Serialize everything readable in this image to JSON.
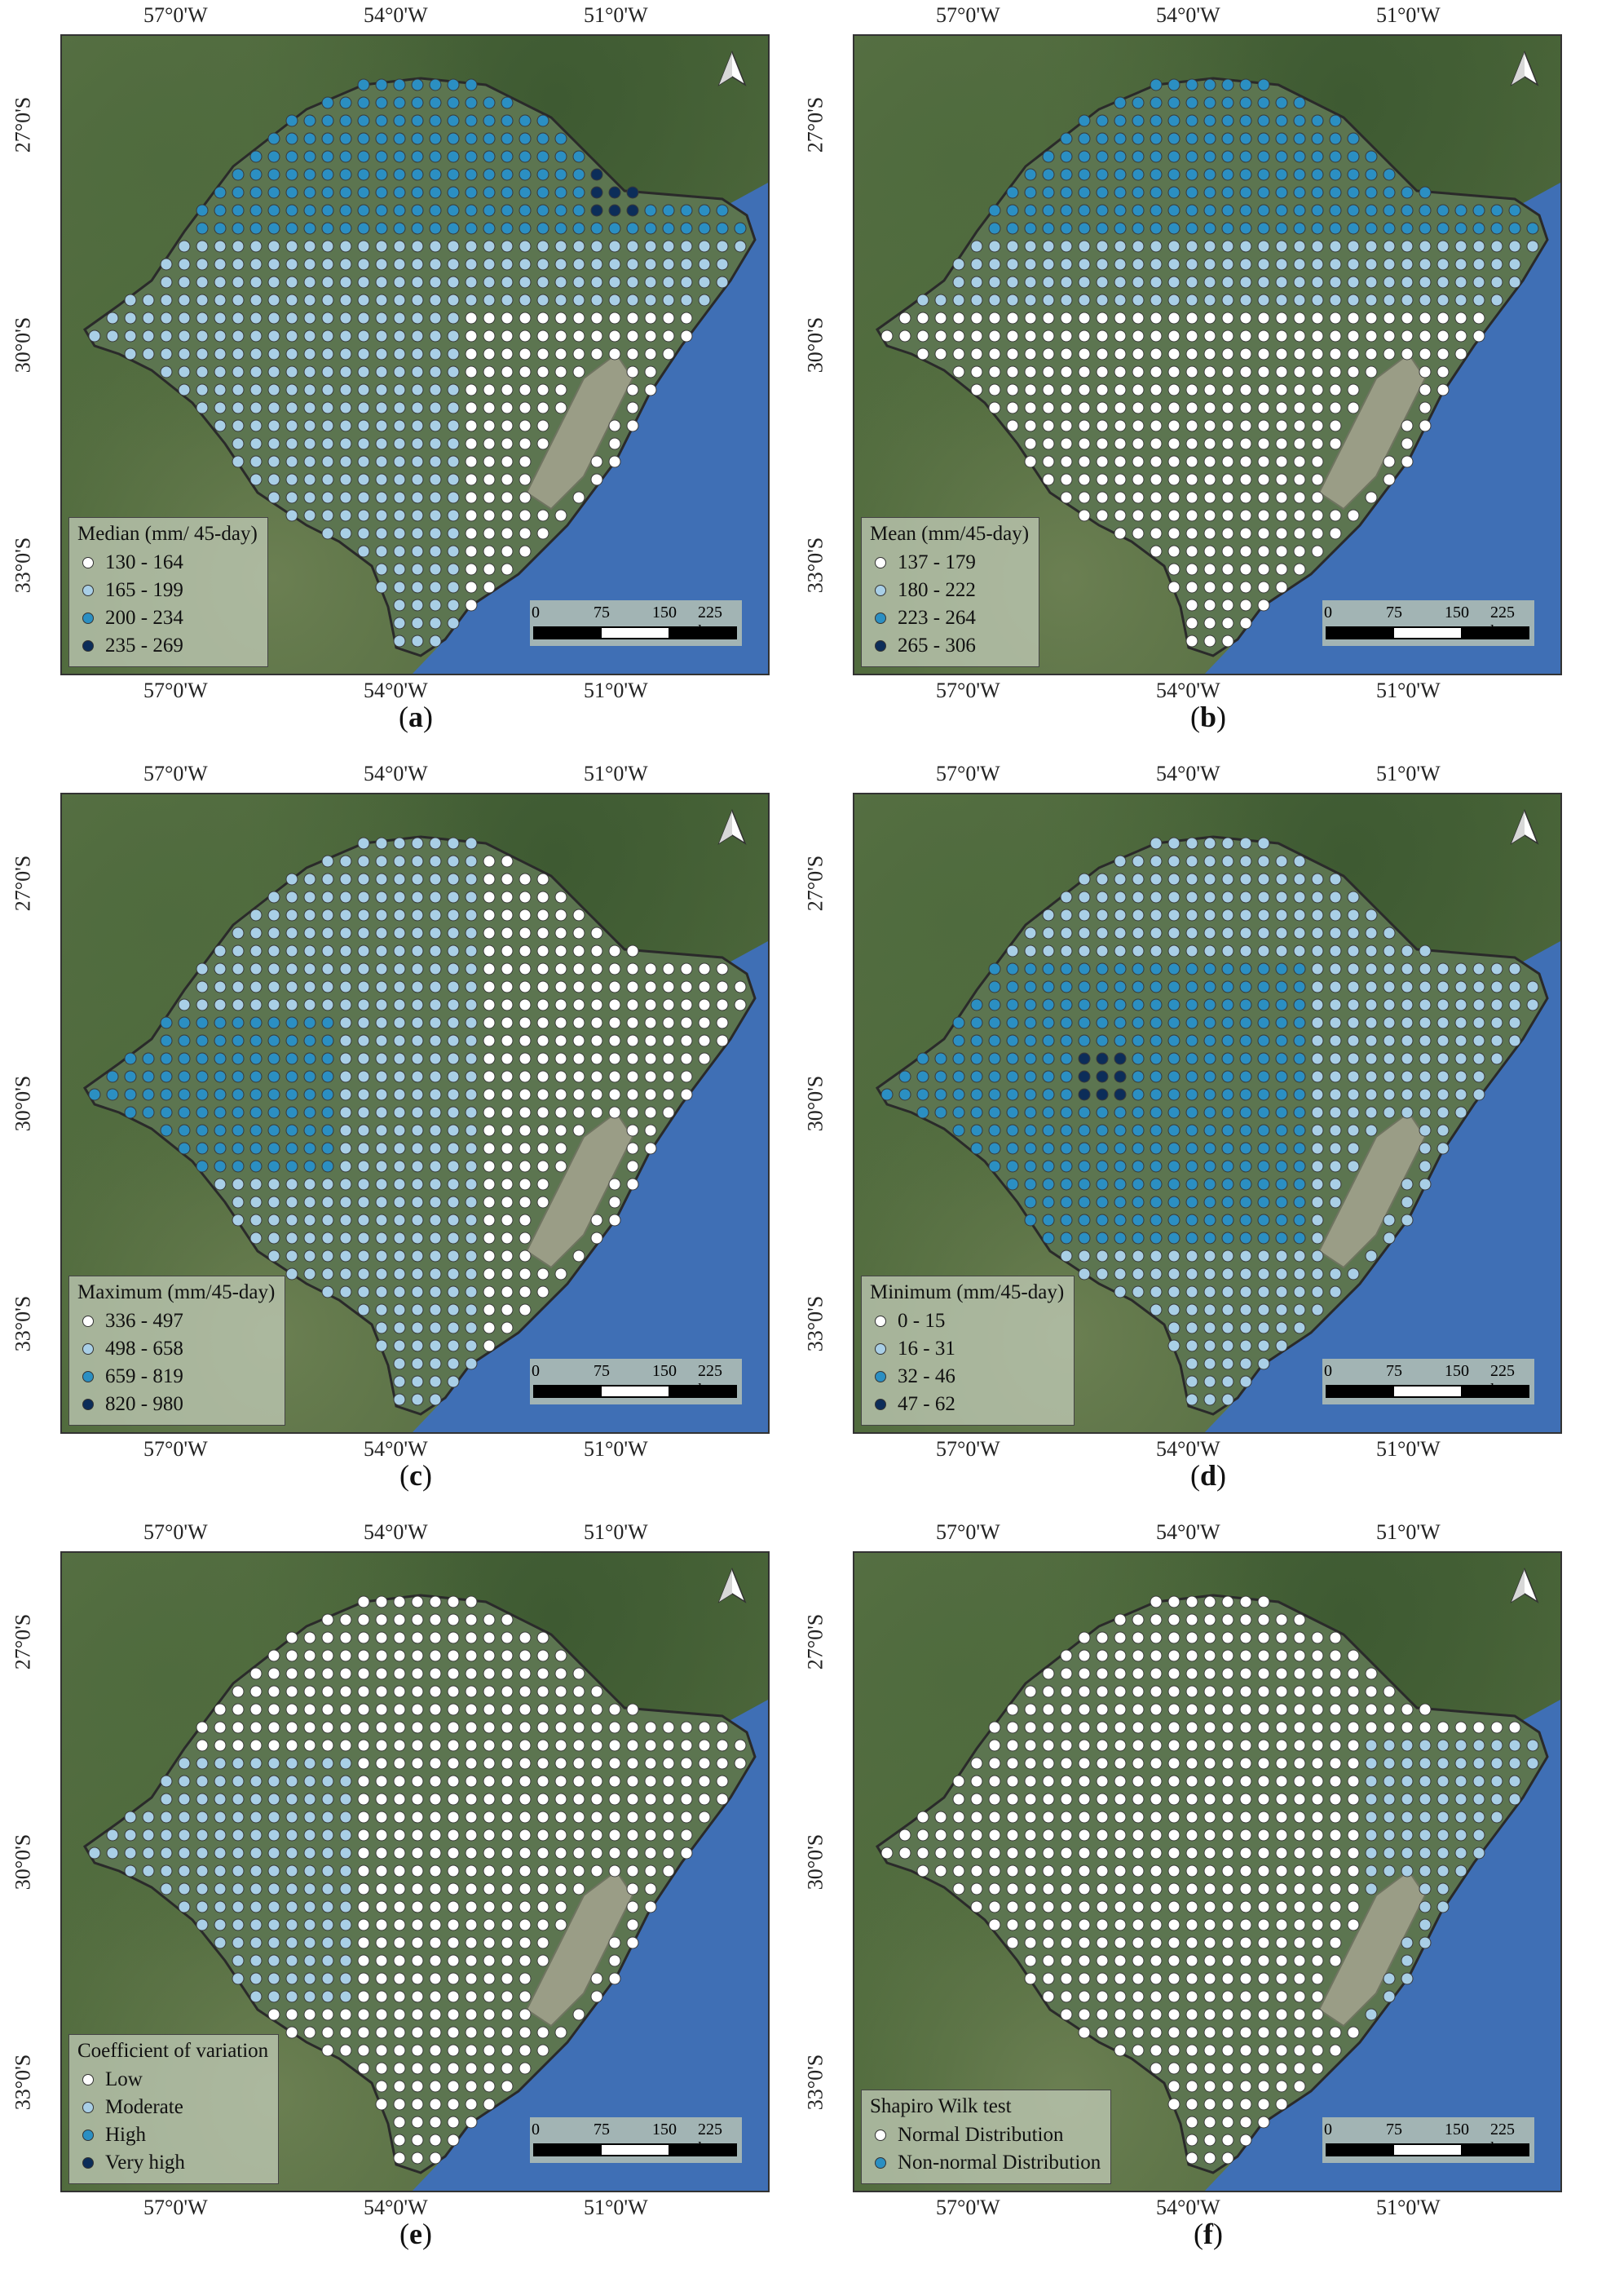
{
  "coordinates": {
    "lon_labels": [
      "57°0'W",
      "54°0'W",
      "51°0'W"
    ],
    "lat_labels": [
      "27°0'S",
      "30°0'S",
      "33°0'S"
    ]
  },
  "scale_bar": {
    "labels": [
      "0",
      "75",
      "150",
      "225 km"
    ]
  },
  "colors": {
    "class1": "#ffffff",
    "class2": "#a9cfe6",
    "class3": "#2b8fc2",
    "class4": "#0c2d59",
    "land": "#4d6a3c",
    "ocean": "#3f6fb5",
    "lagoon": "#9a9d86",
    "state_area": "#5c7550"
  },
  "panels": [
    {
      "caption_letter": "a",
      "legend_title": "Median (mm/ 45-day)",
      "classes": [
        "130 - 164",
        "165 - 199",
        "200 - 234",
        "235 - 269"
      ]
    },
    {
      "caption_letter": "b",
      "legend_title": "Mean (mm/45-day)",
      "classes": [
        "137 - 179",
        "180 - 222",
        "223 - 264",
        "265 - 306"
      ]
    },
    {
      "caption_letter": "c",
      "legend_title": "Maximum (mm/45-day)",
      "classes": [
        "336 - 497",
        "498 - 658",
        "659 - 819",
        "820 - 980"
      ]
    },
    {
      "caption_letter": "d",
      "legend_title": "Minimum (mm/45-day)",
      "classes": [
        "0 - 15",
        "16 - 31",
        "32 - 46",
        "47 - 62"
      ]
    },
    {
      "caption_letter": "e",
      "legend_title": "Coefficient of variation",
      "classes": [
        "Low",
        "Moderate",
        "High",
        "Very high"
      ]
    },
    {
      "caption_letter": "f",
      "legend_title": "Shapiro Wilk test",
      "classes": [
        "Normal Distribution",
        "Non-normal Distribution"
      ]
    }
  ]
}
